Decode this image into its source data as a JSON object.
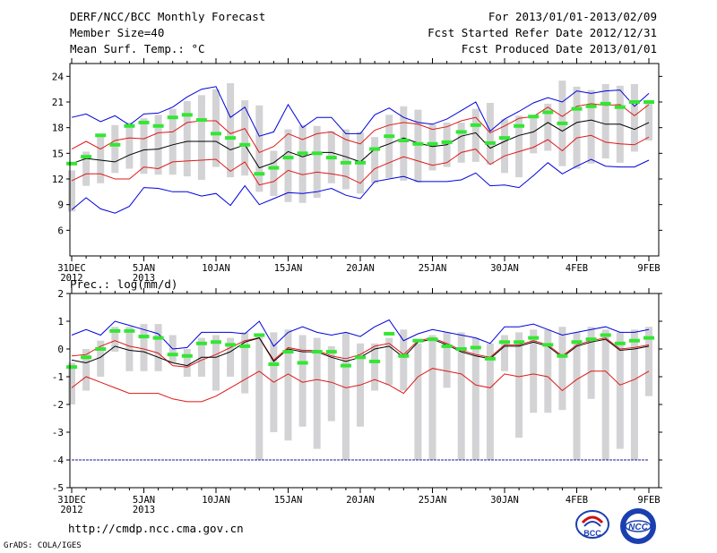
{
  "header": {
    "title": "DERF/NCC/BCC Monthly Forecast",
    "member": "Member Size=40",
    "variable": "Mean Surf. Temp.: °C",
    "period": "For 2013/01/01-2013/02/09",
    "started": "Fcst Started Refer Date 2012/12/31",
    "produced": "Fcst Produced Date 2013/01/01"
  },
  "footer": {
    "url": "http://cmdp.ncc.cma.gov.cn",
    "grads": "GrADS: COLA/IGES",
    "logo_bcc": "BCC",
    "logo_ncc": "NCC"
  },
  "colors": {
    "box": "#d3d3d5",
    "median": "#33e633",
    "mean": "#000000",
    "sd": "#e01818",
    "extreme": "#0000dd"
  },
  "chart_data": [
    {
      "type": "line",
      "title": "Mean Surf. Temp.: °C",
      "x_ticks": [
        "31DEC\n2012",
        "5JAN\n2013",
        "10JAN",
        "15JAN",
        "20JAN",
        "25JAN",
        "30JAN",
        "4FEB",
        "9FEB"
      ],
      "yticks": [
        6,
        9,
        12,
        15,
        18,
        21,
        24
      ],
      "ylim": [
        3,
        25.5
      ],
      "days": 41,
      "box_low": [
        8.2,
        11.2,
        11.5,
        12.7,
        13.2,
        12.6,
        12.5,
        12.5,
        12.3,
        11.9,
        13.4,
        12.2,
        12.4,
        10.5,
        10.0,
        9.3,
        9.2,
        9.8,
        11.5,
        10.8,
        10.3,
        11.5,
        12.1,
        11.8,
        11.6,
        13.0,
        13.4,
        13.9,
        14.0,
        13.7,
        12.7,
        12.2,
        15.0,
        15.3,
        13.5,
        13.2,
        13.8,
        14.4,
        13.9,
        15.2,
        16.5
      ],
      "box_high": [
        13.0,
        15.2,
        17.3,
        18.3,
        18.6,
        19.1,
        19.5,
        20.2,
        21.1,
        21.8,
        22.5,
        23.2,
        21.2,
        20.6,
        15.3,
        17.8,
        18.3,
        18.2,
        17.6,
        17.8,
        17.5,
        16.9,
        19.5,
        20.5,
        20.1,
        18.4,
        18.6,
        18.6,
        20.2,
        20.9,
        19.0,
        19.4,
        19.5,
        20.8,
        23.5,
        22.8,
        22.4,
        23.1,
        22.9,
        23.1,
        21.1
      ],
      "median": [
        13.8,
        14.6,
        17.1,
        16.0,
        18.2,
        18.6,
        18.2,
        19.2,
        19.5,
        18.9,
        17.3,
        16.8,
        16.0,
        12.6,
        13.3,
        14.5,
        15.0,
        15.0,
        14.5,
        13.9,
        13.9,
        15.5,
        17.0,
        16.5,
        16.1,
        16.1,
        16.3,
        17.5,
        18.3,
        16.2,
        16.8,
        18.2,
        19.3,
        19.8,
        18.5,
        20.2,
        20.5,
        20.8,
        20.4,
        21.0,
        21.0
      ],
      "mean": [
        13.8,
        14.4,
        14.2,
        14.0,
        14.8,
        15.4,
        15.5,
        16.0,
        16.4,
        16.4,
        16.4,
        15.4,
        16.0,
        13.3,
        13.9,
        15.2,
        14.6,
        15.1,
        15.1,
        14.6,
        14.0,
        15.5,
        16.1,
        16.8,
        16.2,
        15.8,
        16.0,
        17.0,
        17.4,
        15.6,
        16.4,
        17.1,
        17.5,
        18.6,
        17.6,
        18.6,
        18.9,
        18.4,
        18.4,
        17.8,
        18.6
      ],
      "sd_upper": [
        15.5,
        16.4,
        15.5,
        16.5,
        16.8,
        16.7,
        17.4,
        17.5,
        18.6,
        18.8,
        18.8,
        17.3,
        17.9,
        15.1,
        15.8,
        17.3,
        16.6,
        17.3,
        17.5,
        16.6,
        16.1,
        17.7,
        18.3,
        18.6,
        18.4,
        17.8,
        18.1,
        18.8,
        19.2,
        17.4,
        18.2,
        19.1,
        19.3,
        20.4,
        19.3,
        20.5,
        20.8,
        20.6,
        20.7,
        19.4,
        20.7
      ],
      "sd_lower": [
        11.8,
        12.6,
        12.6,
        12.0,
        12.0,
        13.4,
        13.2,
        14.0,
        14.1,
        14.2,
        14.3,
        12.9,
        14.0,
        11.3,
        11.7,
        13.0,
        12.5,
        12.8,
        12.6,
        12.3,
        11.5,
        13.2,
        13.9,
        14.6,
        14.1,
        13.6,
        13.9,
        15.1,
        15.5,
        13.7,
        14.7,
        15.2,
        15.7,
        16.6,
        15.3,
        16.8,
        17.1,
        16.3,
        16.1,
        16.0,
        16.9
      ],
      "max": [
        19.2,
        19.6,
        18.7,
        19.4,
        18.3,
        19.6,
        19.7,
        20.4,
        21.6,
        22.5,
        22.8,
        19.2,
        20.4,
        17.0,
        17.5,
        20.7,
        18.0,
        19.2,
        19.2,
        17.3,
        17.3,
        19.5,
        20.3,
        19.2,
        18.6,
        18.4,
        19.0,
        20.0,
        21.0,
        17.6,
        19.0,
        19.9,
        20.9,
        21.5,
        21.0,
        22.3,
        22.0,
        22.3,
        22.4,
        20.5,
        22.0
      ],
      "min": [
        8.4,
        9.8,
        8.5,
        8.0,
        8.8,
        11.0,
        10.9,
        10.5,
        10.5,
        10.0,
        10.3,
        8.9,
        11.2,
        9.0,
        9.7,
        10.4,
        10.3,
        10.5,
        10.9,
        10.1,
        9.7,
        11.7,
        12.0,
        12.3,
        11.7,
        11.7,
        11.7,
        11.9,
        12.7,
        11.2,
        11.3,
        11.0,
        12.4,
        13.9,
        12.6,
        13.5,
        14.3,
        13.5,
        13.4,
        13.4,
        14.2
      ]
    },
    {
      "type": "line",
      "title": "Prec.: log(mm/d)",
      "x_ticks": [
        "31DEC\n2012",
        "5JAN\n2013",
        "10JAN",
        "15JAN",
        "20JAN",
        "25JAN",
        "30JAN",
        "4FEB",
        "9FEB"
      ],
      "yticks": [
        -5,
        -4,
        -3,
        -2,
        -1,
        0,
        1,
        2
      ],
      "ylim": [
        -5,
        2
      ],
      "days": 41,
      "box_low": [
        -2.0,
        -1.5,
        -1.0,
        -0.1,
        -0.8,
        -0.8,
        -0.8,
        -0.5,
        -1.0,
        -1.0,
        -1.5,
        -1.0,
        -1.6,
        -4.0,
        -3.0,
        -3.3,
        -2.8,
        -3.6,
        -2.6,
        -4.0,
        -2.8,
        -1.5,
        -1.3,
        -1.5,
        -4.0,
        -4.0,
        -1.4,
        -4.0,
        -4.0,
        -4.0,
        -0.8,
        -3.2,
        -2.3,
        -2.3,
        -2.2,
        -4.0,
        -1.8,
        -4.0,
        -3.6,
        -4.0,
        -1.7
      ],
      "box_high": [
        -0.5,
        0.0,
        0.3,
        0.8,
        0.8,
        0.9,
        0.9,
        0.5,
        0.0,
        0.4,
        0.5,
        0.4,
        0.6,
        0.5,
        0.6,
        0.7,
        0.5,
        0.4,
        0.1,
        0.6,
        0.2,
        0.2,
        0.4,
        0.7,
        0.2,
        0.5,
        0.6,
        0.6,
        0.4,
        0.2,
        0.5,
        0.6,
        0.7,
        0.7,
        0.8,
        0.6,
        0.8,
        0.7,
        0.6,
        0.7,
        0.8
      ],
      "median": [
        -0.65,
        -0.3,
        0.0,
        0.65,
        0.65,
        0.45,
        0.4,
        -0.2,
        -0.25,
        0.2,
        0.25,
        0.15,
        0.1,
        0.5,
        -0.55,
        -0.1,
        -0.5,
        -0.1,
        -0.1,
        -0.6,
        -0.3,
        -0.45,
        0.55,
        -0.25,
        0.3,
        0.35,
        0.1,
        0.0,
        0.05,
        -0.35,
        0.25,
        0.25,
        0.4,
        0.15,
        -0.25,
        0.25,
        0.35,
        0.5,
        0.2,
        0.3,
        0.4
      ],
      "mean": [
        -0.4,
        -0.5,
        -0.3,
        0.1,
        -0.05,
        -0.1,
        -0.3,
        -0.5,
        -0.6,
        -0.3,
        -0.3,
        -0.1,
        0.25,
        0.4,
        -0.45,
        0.0,
        -0.1,
        -0.1,
        -0.3,
        -0.45,
        -0.3,
        0.0,
        0.1,
        -0.3,
        0.25,
        0.35,
        0.15,
        -0.1,
        -0.25,
        -0.35,
        0.1,
        0.1,
        0.25,
        0.1,
        -0.3,
        0.1,
        0.25,
        0.35,
        -0.05,
        0.0,
        0.1
      ],
      "sd_upper": [
        -0.25,
        -0.2,
        0.1,
        0.3,
        0.1,
        0.0,
        -0.15,
        -0.6,
        -0.65,
        -0.4,
        -0.2,
        0.05,
        0.3,
        0.4,
        -0.4,
        0.05,
        -0.05,
        -0.05,
        -0.25,
        -0.35,
        -0.2,
        0.1,
        0.2,
        -0.2,
        0.3,
        0.4,
        0.2,
        -0.05,
        -0.2,
        -0.3,
        0.15,
        0.15,
        0.3,
        0.15,
        -0.25,
        0.15,
        0.3,
        0.4,
        0.0,
        0.05,
        0.15
      ],
      "sd_lower": [
        -1.4,
        -1.0,
        -1.2,
        -1.4,
        -1.6,
        -1.6,
        -1.6,
        -1.8,
        -1.9,
        -1.9,
        -1.7,
        -1.4,
        -1.1,
        -0.8,
        -1.2,
        -0.9,
        -1.2,
        -1.1,
        -1.2,
        -1.4,
        -1.3,
        -1.1,
        -1.3,
        -1.6,
        -1.0,
        -0.7,
        -0.8,
        -0.9,
        -1.3,
        -1.4,
        -0.9,
        -1.0,
        -0.9,
        -1.0,
        -1.5,
        -1.1,
        -0.8,
        -0.8,
        -1.3,
        -1.1,
        -0.8
      ],
      "max": [
        0.5,
        0.7,
        0.5,
        1.0,
        0.85,
        0.7,
        0.55,
        0.0,
        0.05,
        0.6,
        0.6,
        0.6,
        0.55,
        1.0,
        0.1,
        0.6,
        0.8,
        0.6,
        0.5,
        0.6,
        0.45,
        0.8,
        1.05,
        0.3,
        0.55,
        0.7,
        0.6,
        0.5,
        0.4,
        0.2,
        0.8,
        0.8,
        0.9,
        0.7,
        0.5,
        0.6,
        0.7,
        0.8,
        0.6,
        0.6,
        0.7
      ],
      "min": [
        -4,
        -4,
        -4,
        -4,
        -4,
        -4,
        -4,
        -4,
        -4,
        -4,
        -4,
        -4,
        -4,
        -4,
        -4,
        -4,
        -4,
        -4,
        -4,
        -4,
        -4,
        -4,
        -4,
        -4,
        -4,
        -4,
        -4,
        -4,
        -4,
        -4,
        -4,
        -4,
        -4,
        -4,
        -4,
        -4,
        -4,
        -4,
        -4,
        -4,
        -4
      ]
    }
  ]
}
